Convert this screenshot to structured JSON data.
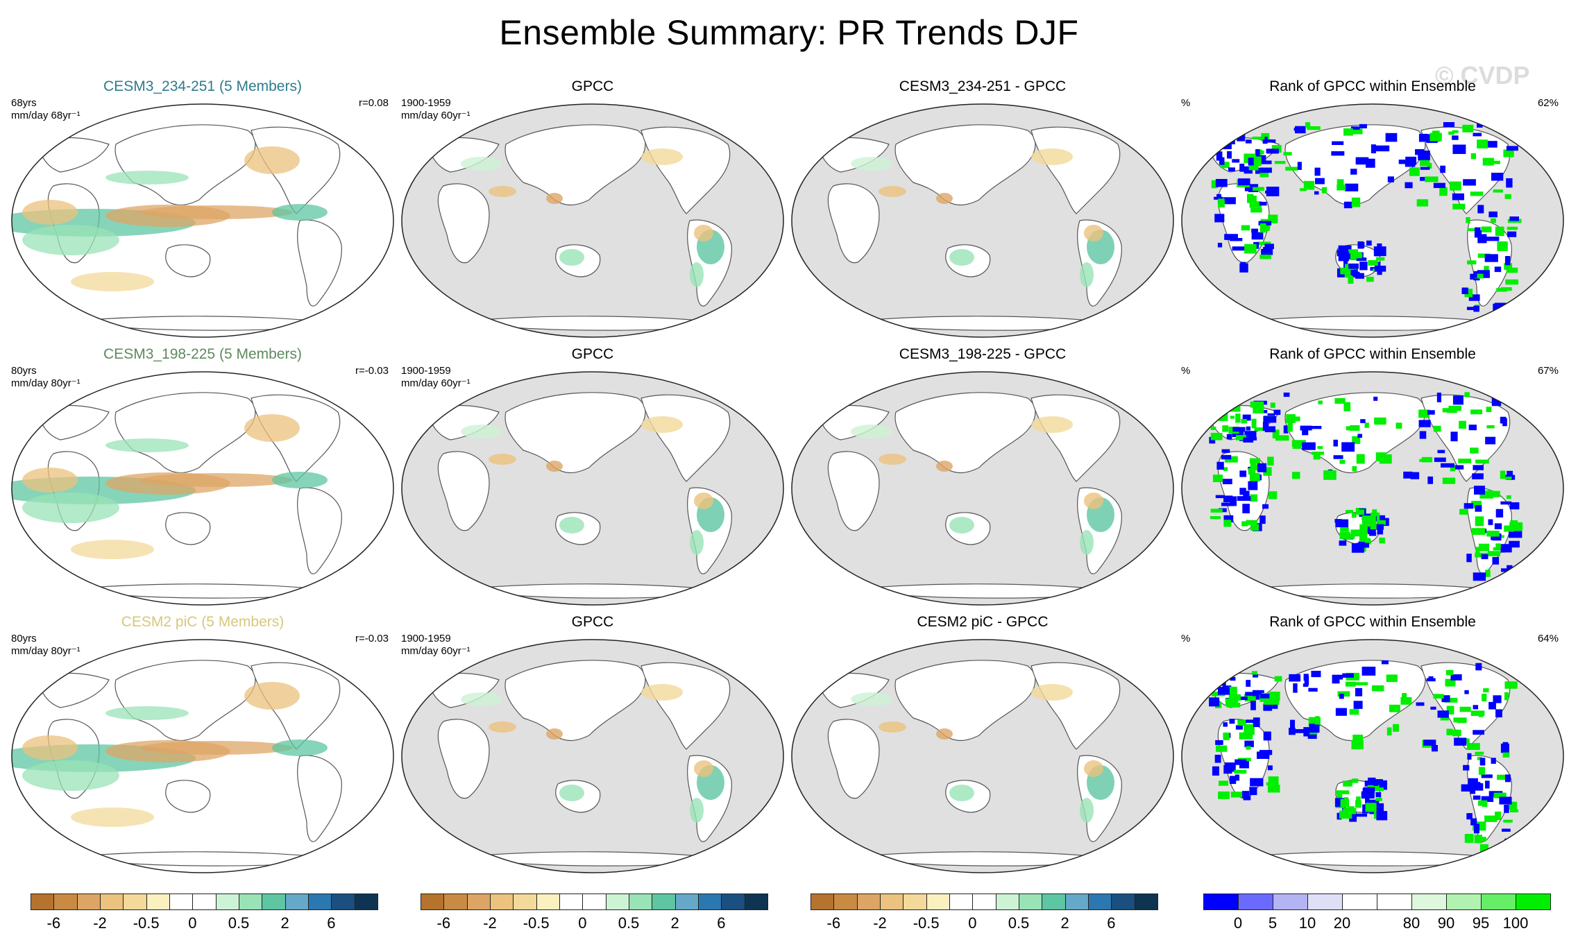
{
  "title": "Ensemble Summary: PR Trends DJF",
  "watermark": "© CVDP",
  "rows": [
    {
      "model": {
        "title": "CESM3_234-251 (5 Members)",
        "title_color": "#2c7c8c",
        "left_text": "68yrs\nmm/day 68yr⁻¹",
        "right_text": "r=0.08"
      },
      "obs": {
        "title": "GPCC",
        "left_text": "1900-1959\nmm/day 60yr⁻¹"
      },
      "diff": {
        "title": "CESM3_234-251 - GPCC"
      },
      "rank": {
        "title": "Rank of GPCC within Ensemble",
        "left_text": "%",
        "right_text": "62%"
      }
    },
    {
      "model": {
        "title": "CESM3_198-225 (5 Members)",
        "title_color": "#5e8a5e",
        "left_text": "80yrs\nmm/day 80yr⁻¹",
        "right_text": "r=-0.03"
      },
      "obs": {
        "title": "GPCC",
        "left_text": "1900-1959\nmm/day 60yr⁻¹"
      },
      "diff": {
        "title": "CESM3_198-225 - GPCC"
      },
      "rank": {
        "title": "Rank of GPCC within Ensemble",
        "left_text": "%",
        "right_text": "67%"
      }
    },
    {
      "model": {
        "title": "CESM2 piC (5 Members)",
        "title_color": "#d6c87a",
        "left_text": "80yrs\nmm/day 80yr⁻¹",
        "right_text": "r=-0.03"
      },
      "obs": {
        "title": "GPCC",
        "left_text": "1900-1959\nmm/day 60yr⁻¹"
      },
      "diff": {
        "title": "CESM2 piC - GPCC"
      },
      "rank": {
        "title": "Rank of GPCC within Ensemble",
        "left_text": "%",
        "right_text": "64%"
      }
    }
  ],
  "colorbars": {
    "trend": {
      "colors": [
        "#b5732e",
        "#c98a44",
        "#dda565",
        "#ebc27e",
        "#f3d99a",
        "#faf0c0",
        "#ffffff",
        "#ffffff",
        "#cdf3d5",
        "#99e3b7",
        "#5ec6a2",
        "#66a8c8",
        "#2b78b0",
        "#1a4f80",
        "#0e3452"
      ],
      "labels": [
        "-6",
        "-2",
        "-0.5",
        "0",
        "0.5",
        "2",
        "6"
      ]
    },
    "rank": {
      "colors": [
        "#0000ff",
        "#6a6aff",
        "#b4b4f4",
        "#dfe0f8",
        "#ffffff",
        "#ffffff",
        "#ddf8dd",
        "#b0f2b0",
        "#66ee66",
        "#00ee00"
      ],
      "labels": [
        "0",
        "5",
        "10",
        "20",
        "80",
        "90",
        "95",
        "100"
      ]
    }
  },
  "map_colors": {
    "ocean_gray": "#e0e0e0",
    "land_white": "#ffffff",
    "coast": "#555555"
  }
}
